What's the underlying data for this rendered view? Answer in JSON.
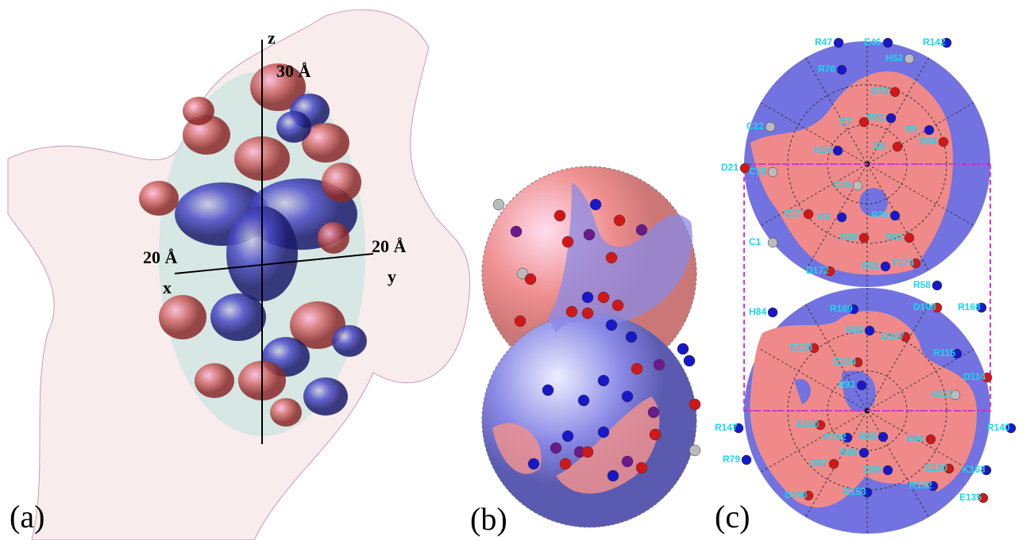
{
  "panel_a": {
    "label": "(a)",
    "axes": {
      "z": "z",
      "x": "x",
      "y": "y"
    },
    "scales": [
      "30 Å",
      "20 Å",
      "20 Å"
    ]
  },
  "panel_b": {
    "label": "(b)"
  },
  "panel_c": {
    "label": "(c)",
    "residues": [
      "R47",
      "E46",
      "R142",
      "H52",
      "R76",
      "D73",
      "R31",
      "E7",
      "R9",
      "D6",
      "D64",
      "C22",
      "H14",
      "D21",
      "C18",
      "C15",
      "E17",
      "K3",
      "R26",
      "D38",
      "D61",
      "C1",
      "D172",
      "R81",
      "Y174",
      "R58",
      "H84",
      "R169",
      "D108",
      "R168",
      "R89",
      "D107",
      "E128",
      "R115",
      "E104",
      "D114",
      "R91",
      "H117",
      "R147",
      "E150",
      "R140",
      "R152",
      "R95",
      "E94",
      "R79",
      "R88",
      "E130",
      "K163",
      "D87",
      "D86",
      "R132",
      "D156",
      "R153",
      "E135"
    ]
  }
}
